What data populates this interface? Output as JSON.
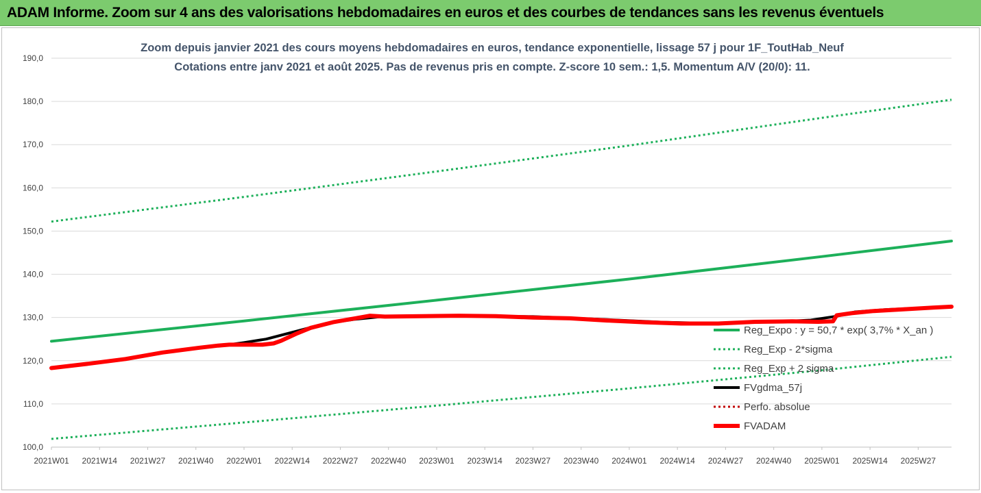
{
  "banner": {
    "title": "ADAM Informe. Zoom sur 4 ans des valorisations hebdomadaires en euros et des courbes de tendances sans les revenus éventuels"
  },
  "colors": {
    "banner_bg": "#7ccb6e",
    "trend_green": "#1db05a",
    "fvadam_red": "#ff0000",
    "fvgdma_black": "#000000",
    "perfo_red": "#c00000",
    "title_text": "#44546a"
  },
  "chart_data": {
    "type": "line",
    "title": "Zoom depuis janvier 2021 des cours moyens hebdomadaires en euros, tendance exponentielle, lissage 57 j pour 1F_ToutHab_Neuf",
    "subtitle": "Cotations entre janv 2021 et août 2025. Pas de revenus pris en compte. Z-score 10 sem.: 1,5. Momentum A/V (20/0): 11.",
    "xlabel": "",
    "ylabel": "",
    "ylim": [
      100,
      190
    ],
    "yticks": [
      "100,0",
      "110,0",
      "120,0",
      "130,0",
      "140,0",
      "150,0",
      "160,0",
      "170,0",
      "180,0",
      "190,0"
    ],
    "x_tick_labels": [
      "2021W01",
      "2021W14",
      "2021W27",
      "2021W40",
      "2022W01",
      "2022W14",
      "2022W27",
      "2022W40",
      "2023W01",
      "2023W14",
      "2023W27",
      "2023W40",
      "2024W01",
      "2024W14",
      "2024W27",
      "2024W40",
      "2025W01",
      "2025W14",
      "2025W27"
    ],
    "x_range_weeks": [
      0,
      243
    ],
    "grid": true,
    "legend_position": "right",
    "series": [
      {
        "name": "Reg_Expo : y = 50,7 * exp( 3,7% * X_an )",
        "style": "solid",
        "color": "#1db05a",
        "points": [
          [
            0,
            124.5
          ],
          [
            52,
            129.2
          ],
          [
            104,
            134.0
          ],
          [
            156,
            138.9
          ],
          [
            208,
            144.1
          ],
          [
            243,
            147.7
          ]
        ]
      },
      {
        "name": "Reg_Exp - 2*sigma",
        "style": "dotted",
        "color": "#1db05a",
        "points": [
          [
            0,
            101.9
          ],
          [
            52,
            105.7
          ],
          [
            104,
            109.6
          ],
          [
            156,
            113.6
          ],
          [
            208,
            117.8
          ],
          [
            243,
            120.9
          ]
        ]
      },
      {
        "name": "Reg_Exp + 2 sigma",
        "style": "dotted",
        "color": "#1db05a",
        "points": [
          [
            0,
            152.2
          ],
          [
            52,
            157.9
          ],
          [
            104,
            163.8
          ],
          [
            156,
            169.8
          ],
          [
            208,
            176.2
          ],
          [
            243,
            180.4
          ]
        ]
      },
      {
        "name": "FVgdma_57j",
        "style": "solid",
        "color": "#000000",
        "points": [
          [
            0,
            118.3
          ],
          [
            10,
            119.2
          ],
          [
            20,
            120.3
          ],
          [
            30,
            121.8
          ],
          [
            40,
            123.0
          ],
          [
            47,
            123.6
          ],
          [
            52,
            124.2
          ],
          [
            58,
            125.0
          ],
          [
            66,
            126.8
          ],
          [
            74,
            128.6
          ],
          [
            82,
            129.6
          ],
          [
            88,
            130.1
          ],
          [
            96,
            130.3
          ],
          [
            110,
            130.4
          ],
          [
            130,
            130.2
          ],
          [
            150,
            129.5
          ],
          [
            165,
            128.9
          ],
          [
            180,
            128.6
          ],
          [
            195,
            129.0
          ],
          [
            205,
            129.4
          ],
          [
            212,
            130.3
          ],
          [
            217,
            131.3
          ],
          [
            225,
            131.8
          ],
          [
            235,
            132.2
          ],
          [
            243,
            132.5
          ]
        ]
      },
      {
        "name": "Perfo. absolue",
        "style": "dotted",
        "color": "#c00000",
        "points": []
      },
      {
        "name": "FVADAM",
        "style": "solid",
        "color": "#ff0000",
        "points": [
          [
            0,
            118.3
          ],
          [
            10,
            119.3
          ],
          [
            20,
            120.4
          ],
          [
            30,
            121.9
          ],
          [
            40,
            123.0
          ],
          [
            45,
            123.5
          ],
          [
            48,
            123.7
          ],
          [
            57,
            123.7
          ],
          [
            60,
            124.0
          ],
          [
            62,
            124.6
          ],
          [
            66,
            126.2
          ],
          [
            70,
            127.6
          ],
          [
            76,
            128.9
          ],
          [
            82,
            129.8
          ],
          [
            86,
            130.4
          ],
          [
            90,
            130.2
          ],
          [
            100,
            130.3
          ],
          [
            110,
            130.4
          ],
          [
            120,
            130.3
          ],
          [
            130,
            130.0
          ],
          [
            140,
            129.8
          ],
          [
            150,
            129.3
          ],
          [
            160,
            128.9
          ],
          [
            170,
            128.6
          ],
          [
            180,
            128.6
          ],
          [
            190,
            129.0
          ],
          [
            200,
            129.1
          ],
          [
            207,
            129.0
          ],
          [
            211,
            129.1
          ],
          [
            212,
            130.5
          ],
          [
            216,
            131.0
          ],
          [
            222,
            131.5
          ],
          [
            230,
            131.9
          ],
          [
            238,
            132.3
          ],
          [
            243,
            132.5
          ]
        ]
      }
    ]
  }
}
